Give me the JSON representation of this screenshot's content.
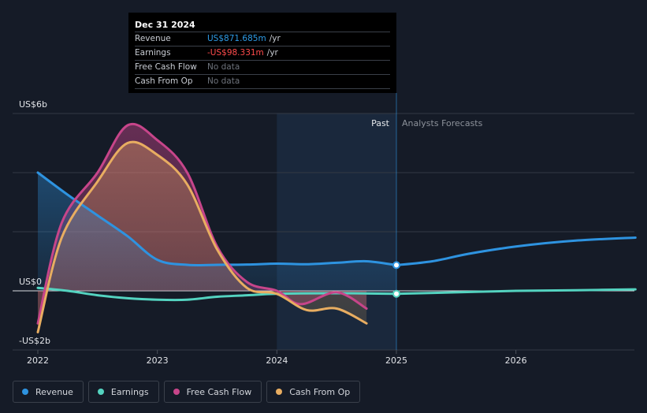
{
  "tooltip": {
    "date": "Dec 31 2024",
    "rows": [
      {
        "label": "Revenue",
        "value": "US$871.685m",
        "unit": "/yr"
      },
      {
        "label": "Earnings",
        "value": "-US$98.331m",
        "unit": "/yr"
      },
      {
        "label": "Free Cash Flow",
        "value": "No data",
        "unit": ""
      },
      {
        "label": "Cash From Op",
        "value": "No data",
        "unit": ""
      }
    ]
  },
  "legend": [
    {
      "label": "Revenue",
      "color": "#2e93e0"
    },
    {
      "label": "Earnings",
      "color": "#54d3c0"
    },
    {
      "label": "Free Cash Flow",
      "color": "#c7458a"
    },
    {
      "label": "Cash From Op",
      "color": "#e8ad61"
    }
  ],
  "chart_data": {
    "type": "line",
    "y_axis_labels": [
      "US$6b",
      "US$0",
      "-US$2b"
    ],
    "ylim": [
      -2,
      6
    ],
    "xlim": [
      2021.8,
      2027.0
    ],
    "x_tick_labels": [
      "2022",
      "2023",
      "2024",
      "2025",
      "2026"
    ],
    "x_ticks": [
      2022,
      2023,
      2024,
      2025,
      2026
    ],
    "past_label": "Past",
    "forecast_label": "Analysts Forecasts",
    "shade_start": 2024.0,
    "divider": 2025.0,
    "series": [
      {
        "name": "Revenue",
        "color": "#2e93e0",
        "points": [
          [
            2022.0,
            4.0
          ],
          [
            2022.25,
            3.25
          ],
          [
            2022.5,
            2.55
          ],
          [
            2022.75,
            1.85
          ],
          [
            2023.0,
            1.05
          ],
          [
            2023.25,
            0.88
          ],
          [
            2023.5,
            0.88
          ],
          [
            2023.75,
            0.89
          ],
          [
            2024.0,
            0.92
          ],
          [
            2024.25,
            0.9
          ],
          [
            2024.5,
            0.95
          ],
          [
            2024.75,
            1.0
          ],
          [
            2025.0,
            0.87
          ]
        ],
        "forecast": [
          [
            2025.0,
            0.87
          ],
          [
            2025.3,
            1.0
          ],
          [
            2025.6,
            1.25
          ],
          [
            2026.0,
            1.5
          ],
          [
            2026.5,
            1.7
          ],
          [
            2027.0,
            1.8
          ]
        ]
      },
      {
        "name": "Earnings",
        "color": "#54d3c0",
        "points": [
          [
            2022.0,
            0.1
          ],
          [
            2022.25,
            0.0
          ],
          [
            2022.5,
            -0.15
          ],
          [
            2022.75,
            -0.25
          ],
          [
            2023.0,
            -0.3
          ],
          [
            2023.25,
            -0.3
          ],
          [
            2023.5,
            -0.2
          ],
          [
            2023.75,
            -0.15
          ],
          [
            2024.0,
            -0.1
          ],
          [
            2024.5,
            -0.08
          ],
          [
            2025.0,
            -0.1
          ]
        ],
        "forecast": [
          [
            2025.0,
            -0.1
          ],
          [
            2025.5,
            -0.05
          ],
          [
            2026.0,
            0.0
          ],
          [
            2026.5,
            0.02
          ],
          [
            2027.0,
            0.05
          ]
        ]
      },
      {
        "name": "Free Cash Flow",
        "color": "#c7458a",
        "points": [
          [
            2022.0,
            -1.1
          ],
          [
            2022.2,
            2.3
          ],
          [
            2022.5,
            4.0
          ],
          [
            2022.75,
            5.6
          ],
          [
            2023.0,
            5.1
          ],
          [
            2023.25,
            4.0
          ],
          [
            2023.5,
            1.5
          ],
          [
            2023.75,
            0.3
          ],
          [
            2024.0,
            0.0
          ],
          [
            2024.2,
            -0.45
          ],
          [
            2024.5,
            -0.05
          ],
          [
            2024.75,
            -0.6
          ]
        ]
      },
      {
        "name": "Cash From Op",
        "color": "#e8ad61",
        "points": [
          [
            2022.0,
            -1.4
          ],
          [
            2022.2,
            1.8
          ],
          [
            2022.5,
            3.7
          ],
          [
            2022.75,
            5.0
          ],
          [
            2023.0,
            4.6
          ],
          [
            2023.25,
            3.6
          ],
          [
            2023.5,
            1.4
          ],
          [
            2023.75,
            0.1
          ],
          [
            2024.0,
            -0.1
          ],
          [
            2024.25,
            -0.65
          ],
          [
            2024.5,
            -0.6
          ],
          [
            2024.75,
            -1.1
          ]
        ]
      }
    ]
  }
}
